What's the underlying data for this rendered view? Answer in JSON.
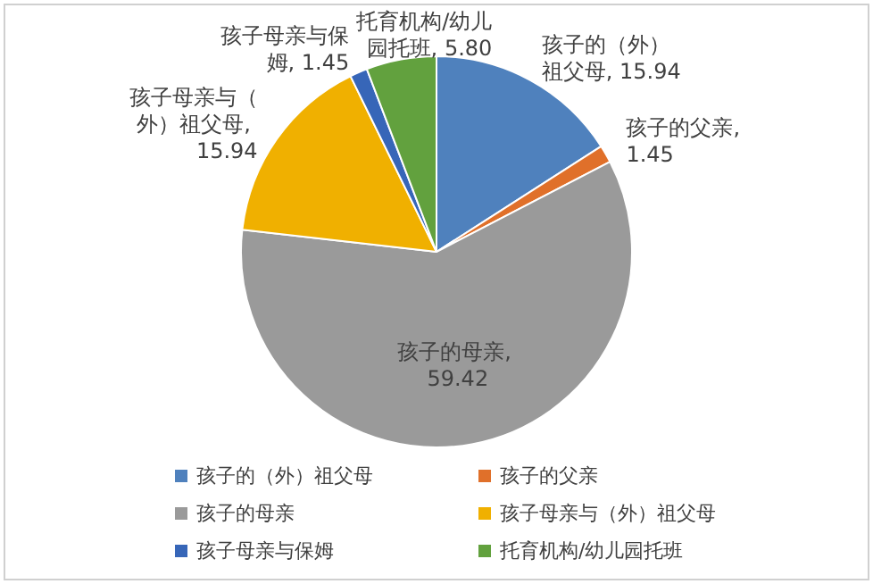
{
  "chart_data": {
    "type": "pie",
    "categories": [
      "孩子的（外）祖父母",
      "孩子的父亲",
      "孩子的母亲",
      "孩子母亲与（外）祖父母",
      "孩子母亲与保姆",
      "托育机构/幼儿园托班"
    ],
    "values": [
      15.94,
      1.45,
      59.42,
      15.94,
      1.45,
      5.8
    ],
    "colors": [
      "#4f81bd",
      "#e0702a",
      "#9a9a9a",
      "#f0b000",
      "#3766b8",
      "#62a13e"
    ],
    "data_labels": true,
    "value_labels": [
      "孩子的（外）祖父母, 15.94",
      "孩子的父亲, 1.45",
      "孩子的母亲, 59.42",
      "孩子母亲与（外）祖父母, 15.94",
      "孩子母亲与保姆, 1.45",
      "托育机构/幼儿园托班, 5.80"
    ],
    "legend": "bottom"
  }
}
